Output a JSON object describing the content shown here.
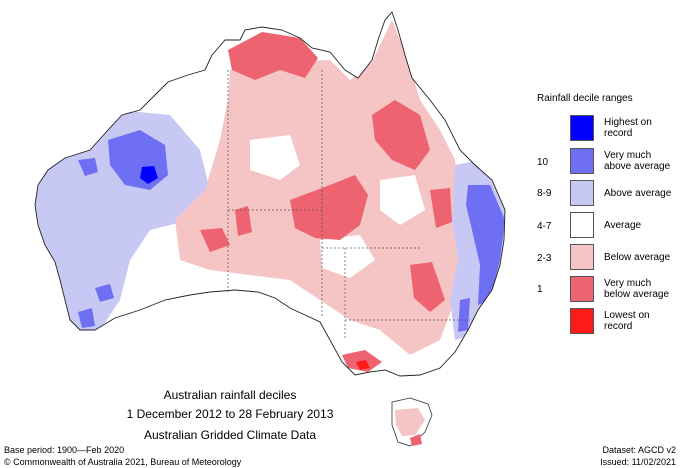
{
  "legend": {
    "title": "Rainfall decile ranges",
    "categories": [
      {
        "label_line1": "Highest on",
        "label_line2": "record",
        "range": "",
        "color": "#0000ff"
      },
      {
        "label_line1": "Very much",
        "label_line2": "above average",
        "range": "10",
        "color": "#6f6ff4"
      },
      {
        "label_line1": "Above average",
        "label_line2": "",
        "range": "8-9",
        "color": "#c8c8f5"
      },
      {
        "label_line1": "Average",
        "label_line2": "",
        "range": "4-7",
        "color": "#ffffff"
      },
      {
        "label_line1": "Below average",
        "label_line2": "",
        "range": "2-3",
        "color": "#f5c4c4"
      },
      {
        "label_line1": "Very much",
        "label_line2": "below average",
        "range": "1",
        "color": "#ee6370"
      },
      {
        "label_line1": "Lowest on",
        "label_line2": "record",
        "range": "",
        "color": "#ff1a1a"
      }
    ]
  },
  "caption": {
    "line1": "Australian rainfall deciles",
    "line2": "1 December 2012 to 28 February 2013",
    "line3": "Australian Gridded Climate Data"
  },
  "footer": {
    "base_period": "Base period: 1900—Feb 2020",
    "dataset": "Dataset: AGCD v2",
    "copyright": "© Commonwealth of Australia 2021, Bureau of Meteorology",
    "issued": "Issued: 11/02/2021"
  }
}
